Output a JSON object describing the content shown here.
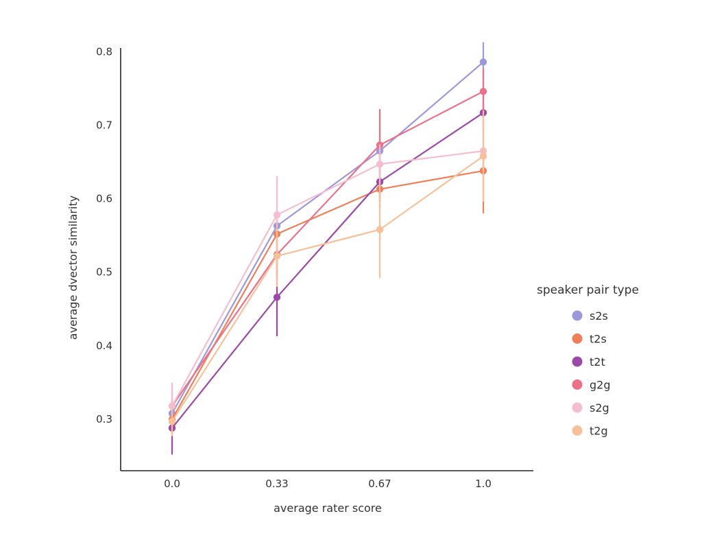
{
  "chart_data": {
    "type": "line",
    "xlabel": "average rater score",
    "ylabel": "average dvector similarity",
    "categories": [
      "0.0",
      "0.33",
      "0.67",
      "1.0"
    ],
    "ylim": [
      0.23,
      0.805
    ],
    "yticks": [
      "0.3",
      "0.4",
      "0.5",
      "0.6",
      "0.7",
      "0.8"
    ],
    "grid": false,
    "legend": {
      "title": "speaker pair type",
      "position": "right"
    },
    "series": [
      {
        "name": "s2s",
        "color": "#9d98dc",
        "values": [
          0.308,
          0.563,
          0.665,
          0.786
        ],
        "errors": [
          [
            0.288,
            0.328
          ],
          [
            0.545,
            0.583
          ],
          [
            0.635,
            0.695
          ],
          [
            0.755,
            0.813
          ]
        ]
      },
      {
        "name": "t2s",
        "color": "#ef7f58",
        "values": [
          0.3,
          0.552,
          0.613,
          0.638
        ],
        "errors": [
          [
            0.282,
            0.318
          ],
          [
            0.522,
            0.582
          ],
          [
            0.588,
            0.638
          ],
          [
            0.58,
            0.67
          ]
        ]
      },
      {
        "name": "t2t",
        "color": "#9b48a8",
        "values": [
          0.288,
          0.466,
          0.623,
          0.717
        ],
        "errors": [
          [
            0.252,
            0.324
          ],
          [
            0.413,
            0.52
          ],
          [
            0.595,
            0.651
          ],
          [
            0.69,
            0.744
          ]
        ]
      },
      {
        "name": "g2g",
        "color": "#ec7088",
        "values": [
          0.318,
          0.524,
          0.673,
          0.746
        ],
        "errors": [
          [
            0.298,
            0.338
          ],
          [
            0.49,
            0.558
          ],
          [
            0.623,
            0.722
          ],
          [
            0.715,
            0.777
          ]
        ]
      },
      {
        "name": "s2g",
        "color": "#f4bdd0",
        "values": [
          0.318,
          0.578,
          0.647,
          0.665
        ],
        "errors": [
          [
            0.285,
            0.35
          ],
          [
            0.525,
            0.631
          ],
          [
            0.62,
            0.674
          ],
          [
            0.638,
            0.692
          ]
        ]
      },
      {
        "name": "t2g",
        "color": "#f6c198",
        "values": [
          0.297,
          0.522,
          0.558,
          0.658
        ],
        "errors": [
          [
            0.277,
            0.317
          ],
          [
            0.48,
            0.564
          ],
          [
            0.492,
            0.624
          ],
          [
            0.596,
            0.72
          ]
        ]
      }
    ]
  }
}
